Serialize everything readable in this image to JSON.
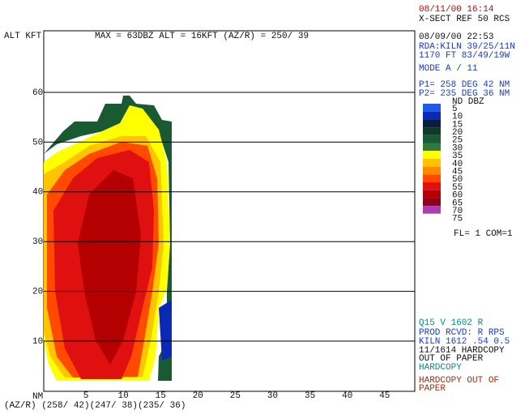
{
  "header": {
    "left_label": "ALT KFT",
    "info": "MAX =  63DBZ   ALT = 16KFT   (AZ/R) = 250/ 39"
  },
  "axes": {
    "y_ticks": [
      "60",
      "50",
      "40",
      "30",
      "20",
      "10"
    ],
    "x_unit": "NM",
    "x_ticks": [
      "5",
      "10",
      "15",
      "20",
      "25",
      "30",
      "35",
      "40",
      "45"
    ],
    "bottom_label": "(AZ/R) (258/ 42)(247/ 38)(235/ 36)"
  },
  "panel": {
    "timestamp": "08/11/00 16:14",
    "product": "X-SECT REF 50 RCS",
    "date": "08/09/00 22:53",
    "rda": "RDA:KILN 39/25/11N",
    "elev": "1170 FT  83/49/19W",
    "mode": "MODE A /    11",
    "p1": "P1= 258 DEG  42 NM",
    "p2": "P2= 235 DEG  36 NM",
    "legend_header": "ND  DBZ",
    "legend": [
      {
        "label": "5",
        "color": "#1e5ae6"
      },
      {
        "label": "10",
        "color": "#0a2ab4"
      },
      {
        "label": "15",
        "color": "#0a1e3c"
      },
      {
        "label": "20",
        "color": "#0e3a2a"
      },
      {
        "label": "25",
        "color": "#1a5a32"
      },
      {
        "label": "30",
        "color": "#2e7a3e"
      },
      {
        "label": "35",
        "color": "#ffff00"
      },
      {
        "label": "40",
        "color": "#ffc400"
      },
      {
        "label": "45",
        "color": "#ff8a00"
      },
      {
        "label": "50",
        "color": "#ff4a00"
      },
      {
        "label": "55",
        "color": "#e01010"
      },
      {
        "label": "60",
        "color": "#b40000"
      },
      {
        "label": "65",
        "color": "#900018"
      },
      {
        "label": "70",
        "color": "#b03ab0"
      },
      {
        "label": "75",
        "color": "#ffffff"
      }
    ],
    "flags": "FL= 1 COM=1",
    "status": [
      "Q15 V   1602    R",
      "PROD RCVD: R   RPS",
      "KILN 1612 .54  0.5",
      "11/1614 HARDCOPY",
      "OUT OF PAPER",
      "HARDCOPY",
      "HARDCOPY OUT OF",
      "PAPER"
    ]
  }
}
